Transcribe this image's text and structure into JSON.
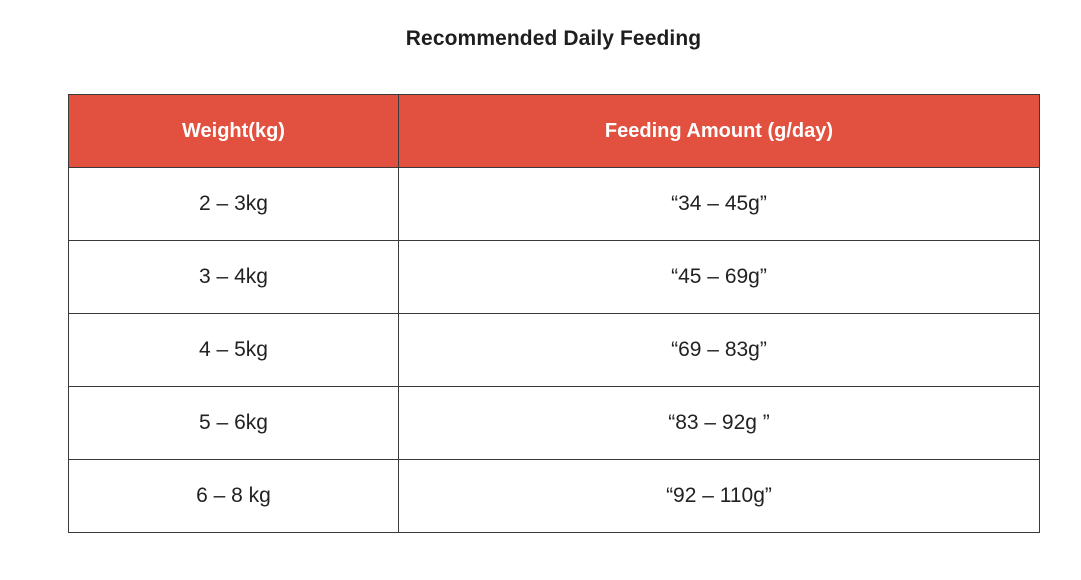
{
  "title": "Recommended Daily Feeding",
  "table": {
    "headers": [
      "Weight(kg)",
      "Feeding Amount (g/day)"
    ],
    "rows": [
      [
        "2 – 3kg",
        "“34 – 45g”"
      ],
      [
        "3 – 4kg",
        "“45 – 69g”"
      ],
      [
        "4 – 5kg",
        "“69 – 83g”"
      ],
      [
        "5 – 6kg",
        "“83 – 92g ”"
      ],
      [
        "6 – 8 kg",
        "“92 – 110g”"
      ]
    ]
  },
  "colors": {
    "header_background": "#e2513f",
    "header_text": "#ffffff",
    "border": "#3a3a3a"
  }
}
